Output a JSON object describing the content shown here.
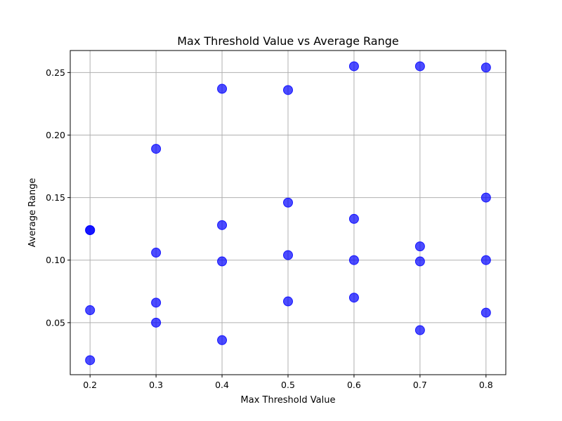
{
  "chart_data": {
    "type": "scatter",
    "title": "Max Threshold Value vs Average Range",
    "xlabel": "Max Threshold Value",
    "ylabel": "Average Range",
    "xlim": [
      0.17,
      0.83
    ],
    "ylim": [
      0.0084,
      0.2676
    ],
    "xticks": [
      0.2,
      0.3,
      0.4,
      0.5,
      0.6,
      0.7,
      0.8
    ],
    "xtick_labels": [
      "0.2",
      "0.3",
      "0.4",
      "0.5",
      "0.6",
      "0.7",
      "0.8"
    ],
    "yticks": [
      0.05,
      0.1,
      0.15,
      0.2,
      0.25
    ],
    "ytick_labels": [
      "0.05",
      "0.10",
      "0.15",
      "0.20",
      "0.25"
    ],
    "grid": true,
    "marker_color": "#0000ff",
    "marker_alpha": 0.7,
    "points": [
      {
        "x": 0.2,
        "y": 0.124
      },
      {
        "x": 0.2,
        "y": 0.124
      },
      {
        "x": 0.2,
        "y": 0.06
      },
      {
        "x": 0.2,
        "y": 0.02
      },
      {
        "x": 0.3,
        "y": 0.189
      },
      {
        "x": 0.3,
        "y": 0.106
      },
      {
        "x": 0.3,
        "y": 0.066
      },
      {
        "x": 0.3,
        "y": 0.05
      },
      {
        "x": 0.4,
        "y": 0.237
      },
      {
        "x": 0.4,
        "y": 0.128
      },
      {
        "x": 0.4,
        "y": 0.099
      },
      {
        "x": 0.4,
        "y": 0.036
      },
      {
        "x": 0.5,
        "y": 0.236
      },
      {
        "x": 0.5,
        "y": 0.146
      },
      {
        "x": 0.5,
        "y": 0.104
      },
      {
        "x": 0.5,
        "y": 0.067
      },
      {
        "x": 0.6,
        "y": 0.255
      },
      {
        "x": 0.6,
        "y": 0.133
      },
      {
        "x": 0.6,
        "y": 0.1
      },
      {
        "x": 0.6,
        "y": 0.07
      },
      {
        "x": 0.7,
        "y": 0.255
      },
      {
        "x": 0.7,
        "y": 0.111
      },
      {
        "x": 0.7,
        "y": 0.099
      },
      {
        "x": 0.7,
        "y": 0.044
      },
      {
        "x": 0.8,
        "y": 0.254
      },
      {
        "x": 0.8,
        "y": 0.15
      },
      {
        "x": 0.8,
        "y": 0.1
      },
      {
        "x": 0.8,
        "y": 0.058
      }
    ]
  }
}
